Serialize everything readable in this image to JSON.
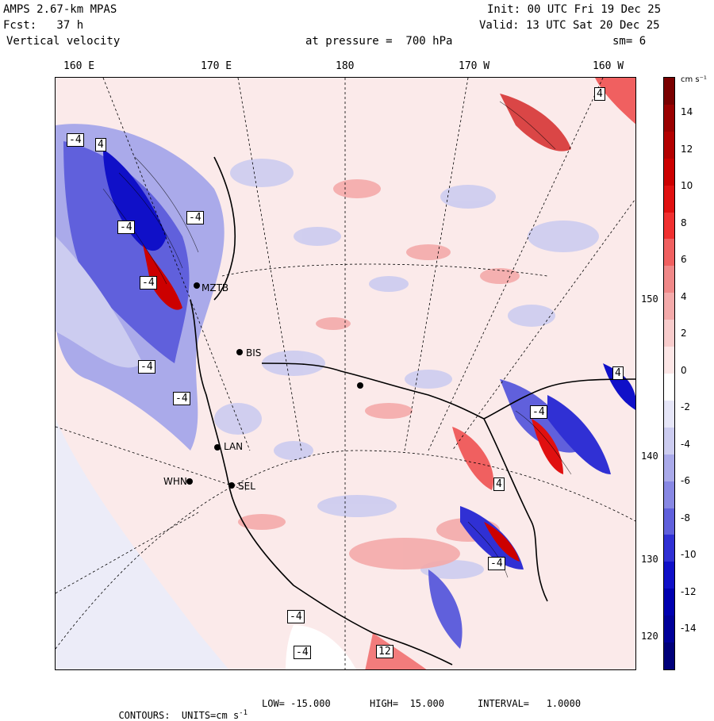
{
  "header": {
    "model": "AMPS 2.67-km MPAS",
    "fcst": "Fcst:   37 h",
    "field": "Vertical velocity",
    "init": "Init: 00 UTC Fri 19 Dec 25",
    "valid": "Valid: 13 UTC Sat 20 Dec 25",
    "pressure": "at pressure =  700 hPa",
    "smooth": "sm= 6"
  },
  "map": {
    "lon_labels": [
      "160 E",
      "170 E",
      "180",
      "170 W",
      "160 W"
    ],
    "lat_labels": [
      "150 W",
      "140 W",
      "130 W",
      "120 W"
    ],
    "stations": [
      "MZTB",
      "BIS",
      "LAN",
      "WHN",
      "SEL"
    ],
    "box_labels": [
      "4",
      "-4",
      "4",
      "-4",
      "-4",
      "-4",
      "-4",
      "-4",
      "4",
      "-4",
      "4",
      "-4",
      "-4",
      "-4",
      "12"
    ]
  },
  "colorbar": {
    "units": "cm s⁻¹",
    "ticks": [
      "14",
      "12",
      "10",
      "8",
      "6",
      "4",
      "2",
      "0",
      "-2",
      "-4",
      "-6",
      "-8",
      "-10",
      "-12",
      "-14"
    ],
    "colors": [
      "#7a0000",
      "#9a0000",
      "#b30000",
      "#cc0000",
      "#e01010",
      "#f03030",
      "#f06060",
      "#f08888",
      "#f4aaaa",
      "#f8cccc",
      "#fce6e6",
      "#ffffff",
      "#e6e6f8",
      "#ccccf0",
      "#aaaaea",
      "#8888e4",
      "#6060dc",
      "#3030d4",
      "#1010c8",
      "#0000b0",
      "#00009a",
      "#00007a"
    ]
  },
  "footer": {
    "contours": "CONTOURS:  UNITS=cm s",
    "units_exp": "-1",
    "low": "LOW= -15.000",
    "high": "HIGH=  15.000",
    "interval": "INTERVAL=   1.0000"
  }
}
